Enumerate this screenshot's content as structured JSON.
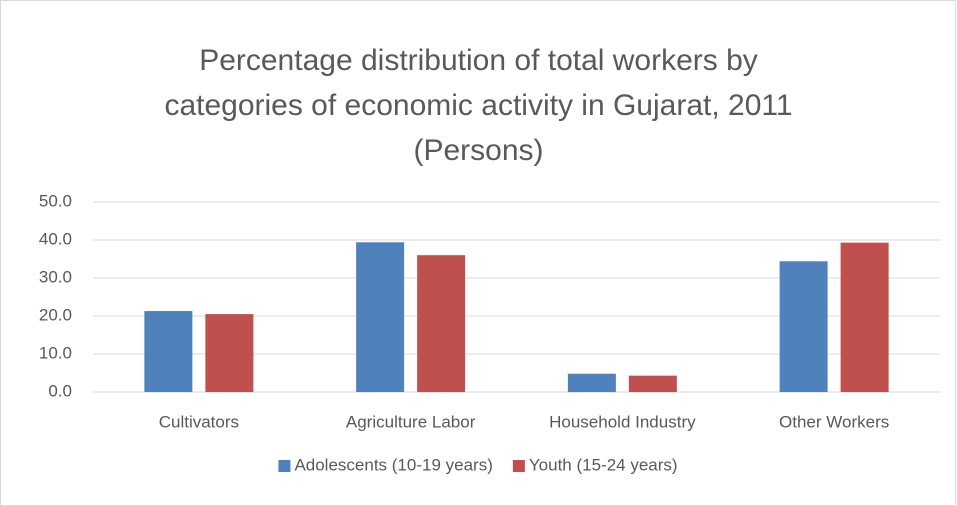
{
  "chart_data": {
    "type": "bar",
    "title": "Percentage distribution of total workers by categories of economic activity in Gujarat, 2011 (Persons)",
    "categories": [
      "Cultivators",
      "Agriculture Labor",
      "Household Industry",
      "Other Workers"
    ],
    "series": [
      {
        "name": "Adolescents (10-19 years)",
        "color": "#4f81bd",
        "values": [
          21.3,
          39.4,
          4.8,
          34.4
        ]
      },
      {
        "name": "Youth (15-24 years)",
        "color": "#c0504d",
        "values": [
          20.5,
          36.0,
          4.3,
          39.3
        ]
      }
    ],
    "ylim": [
      0,
      50
    ],
    "yticks": [
      {
        "value": 0,
        "label": "0.0"
      },
      {
        "value": 10,
        "label": "10.0"
      },
      {
        "value": 20,
        "label": "20.0"
      },
      {
        "value": 30,
        "label": "30.0"
      },
      {
        "value": 40,
        "label": "40.0"
      },
      {
        "value": 50,
        "label": "50.0"
      }
    ],
    "grid": true,
    "legend": "bottom"
  }
}
